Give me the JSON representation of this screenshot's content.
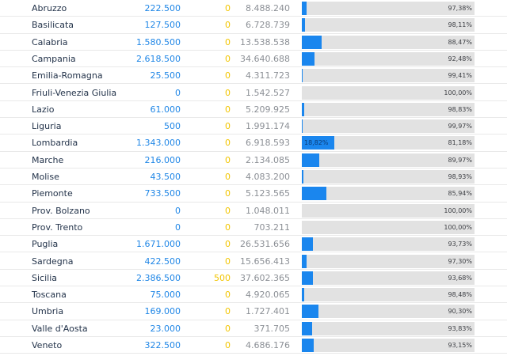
{
  "rows": [
    {
      "region": "Abruzzo",
      "a": "222.500",
      "b": "0",
      "c": "8.488.240",
      "pct": "97,38%",
      "fill": 0.0262
    },
    {
      "region": "Basilicata",
      "a": "127.500",
      "b": "0",
      "c": "6.728.739",
      "pct": "98,11%",
      "fill": 0.0189
    },
    {
      "region": "Calabria",
      "a": "1.580.500",
      "b": "0",
      "c": "13.538.538",
      "pct": "88,47%",
      "fill": 0.1153
    },
    {
      "region": "Campania",
      "a": "2.618.500",
      "b": "0",
      "c": "34.640.688",
      "pct": "92,48%",
      "fill": 0.0752
    },
    {
      "region": "Emilia-Romagna",
      "a": "25.500",
      "b": "0",
      "c": "4.311.723",
      "pct": "99,41%",
      "fill": 0.0059
    },
    {
      "region": "Friuli-Venezia Giulia",
      "a": "0",
      "b": "0",
      "c": "1.542.527",
      "pct": "100,00%",
      "fill": 0
    },
    {
      "region": "Lazio",
      "a": "61.000",
      "b": "0",
      "c": "5.209.925",
      "pct": "98,83%",
      "fill": 0.0117
    },
    {
      "region": "Liguria",
      "a": "500",
      "b": "0",
      "c": "1.991.174",
      "pct": "99,97%",
      "fill": 0.0003
    },
    {
      "region": "Lombardia",
      "a": "1.343.000",
      "b": "0",
      "c": "6.918.593",
      "pct": "81,18%",
      "fill": 0.1882,
      "fill_label": "18,82%"
    },
    {
      "region": "Marche",
      "a": "216.000",
      "b": "0",
      "c": "2.134.085",
      "pct": "89,97%",
      "fill": 0.1003
    },
    {
      "region": "Molise",
      "a": "43.500",
      "b": "0",
      "c": "4.083.200",
      "pct": "98,93%",
      "fill": 0.0107
    },
    {
      "region": "Piemonte",
      "a": "733.500",
      "b": "0",
      "c": "5.123.565",
      "pct": "85,94%",
      "fill": 0.1406
    },
    {
      "region": "Prov. Bolzano",
      "a": "0",
      "b": "0",
      "c": "1.048.011",
      "pct": "100,00%",
      "fill": 0
    },
    {
      "region": "Prov. Trento",
      "a": "0",
      "b": "0",
      "c": "703.211",
      "pct": "100,00%",
      "fill": 0
    },
    {
      "region": "Puglia",
      "a": "1.671.000",
      "b": "0",
      "c": "26.531.656",
      "pct": "93,73%",
      "fill": 0.0627
    },
    {
      "region": "Sardegna",
      "a": "422.500",
      "b": "0",
      "c": "15.656.413",
      "pct": "97,30%",
      "fill": 0.027
    },
    {
      "region": "Sicilia",
      "a": "2.386.500",
      "b": "500",
      "c": "37.602.365",
      "pct": "93,68%",
      "fill": 0.0632
    },
    {
      "region": "Toscana",
      "a": "75.000",
      "b": "0",
      "c": "4.920.065",
      "pct": "98,48%",
      "fill": 0.0152
    },
    {
      "region": "Umbria",
      "a": "169.000",
      "b": "0",
      "c": "1.727.401",
      "pct": "90,30%",
      "fill": 0.097
    },
    {
      "region": "Valle d'Aosta",
      "a": "23.000",
      "b": "0",
      "c": "371.705",
      "pct": "93,83%",
      "fill": 0.0617
    },
    {
      "region": "Veneto",
      "a": "322.500",
      "b": "0",
      "c": "4.686.176",
      "pct": "93,15%",
      "fill": 0.0685
    }
  ],
  "colors": {
    "region_text": "#23334a",
    "col_a": "#1f86e6",
    "col_b": "#f2c500",
    "col_c": "#8b8f95",
    "bar_fill": "#1a86ee",
    "bar_track": "#e2e2e2"
  }
}
